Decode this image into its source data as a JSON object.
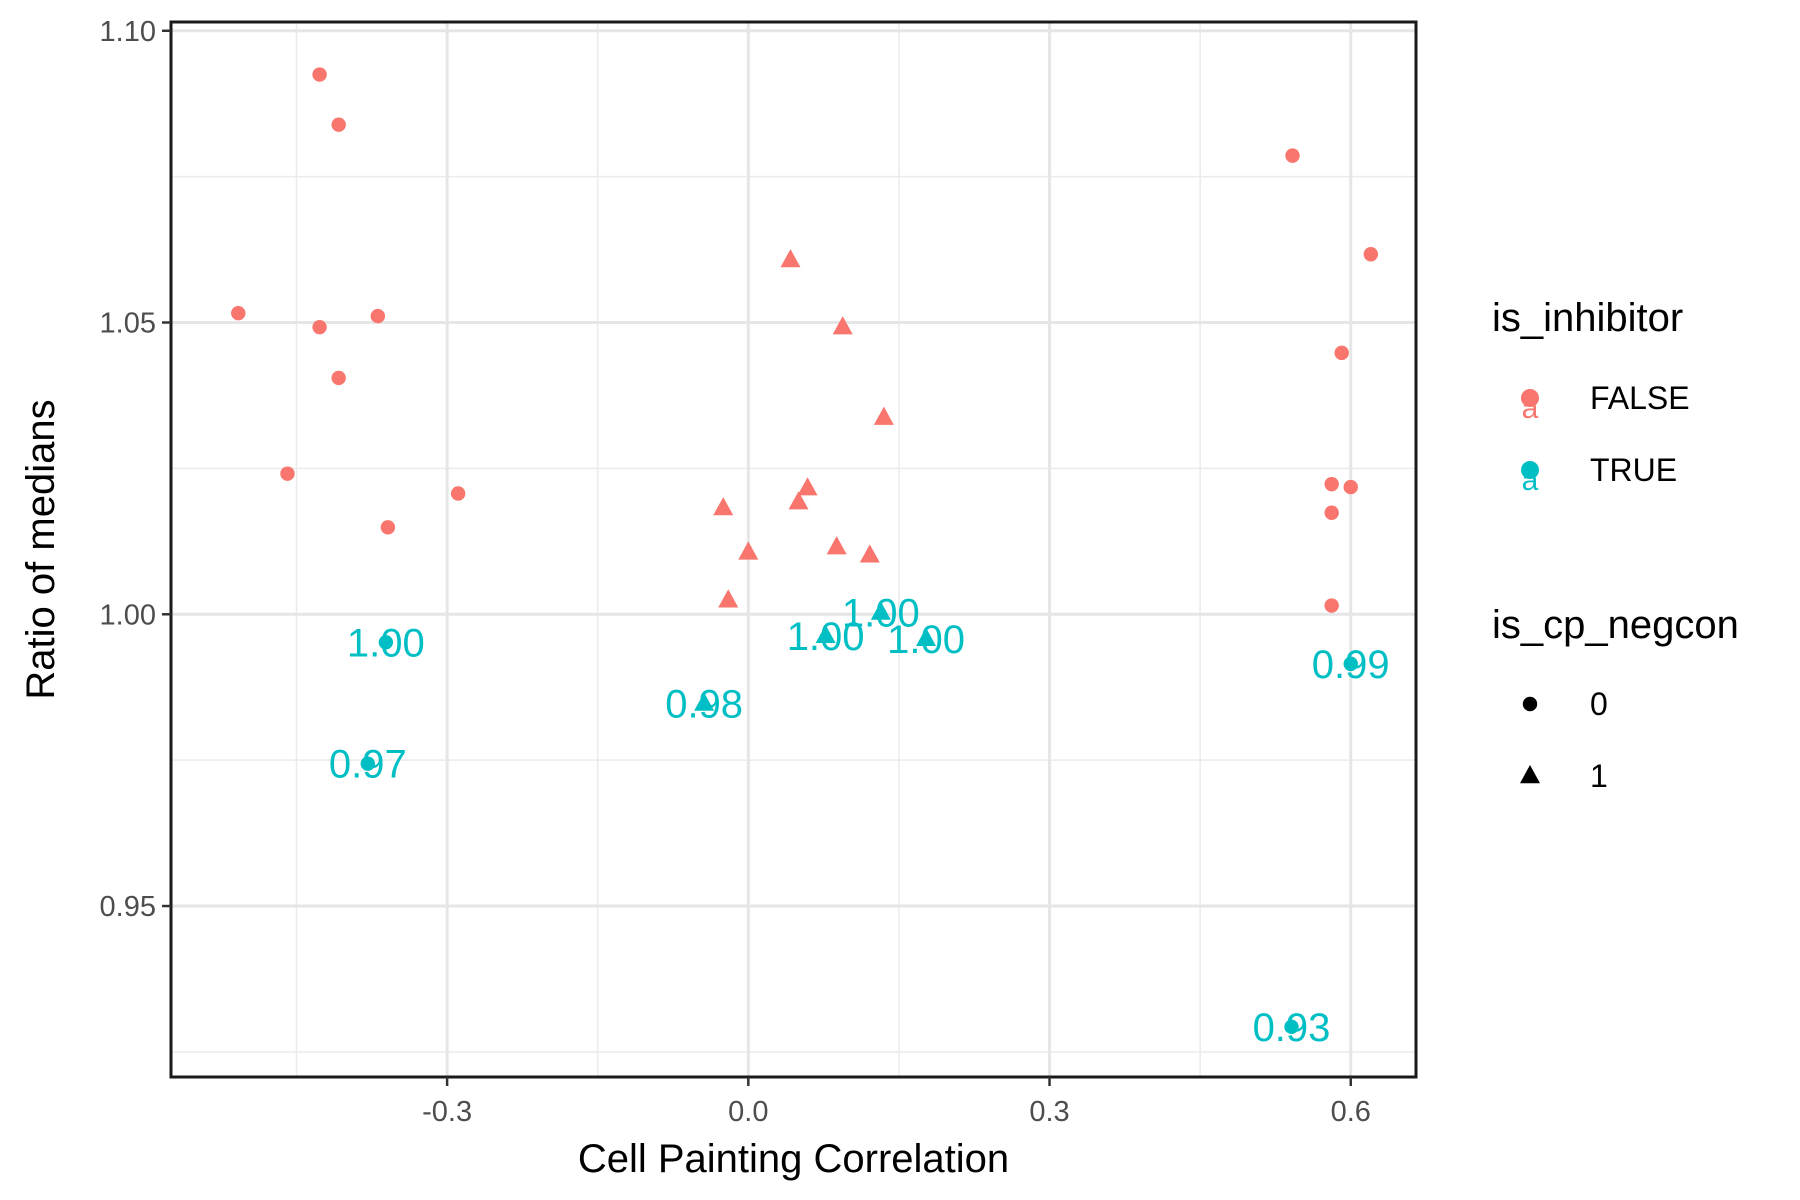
{
  "chart_data": {
    "type": "scatter",
    "xlabel": "Cell Painting Correlation",
    "ylabel": "Ratio of medians",
    "xlim": [
      -0.575,
      0.665
    ],
    "ylim": [
      0.9207,
      1.1015
    ],
    "x_ticks": [
      {
        "value": -0.3,
        "label": "-0.3"
      },
      {
        "value": 0.0,
        "label": "0.0"
      },
      {
        "value": 0.3,
        "label": "0.3"
      },
      {
        "value": 0.6,
        "label": "0.6"
      }
    ],
    "y_ticks": [
      {
        "value": 0.95,
        "label": "0.95"
      },
      {
        "value": 1.0,
        "label": "1.00"
      },
      {
        "value": 1.05,
        "label": "1.05"
      },
      {
        "value": 1.1,
        "label": "1.10"
      }
    ],
    "x_minor": [
      -0.45,
      -0.15,
      0.15,
      0.45
    ],
    "y_minor": [
      0.925,
      0.975,
      1.025,
      1.075
    ],
    "grid": true,
    "colors": {
      "FALSE": "#F8766D",
      "TRUE": "#00BFC4"
    },
    "legends": [
      {
        "title": "is_inhibitor",
        "kind": "color",
        "items": [
          {
            "label": "FALSE",
            "color": "#F8766D"
          },
          {
            "label": "TRUE",
            "color": "#00BFC4"
          }
        ]
      },
      {
        "title": "is_cp_negcon",
        "kind": "shape",
        "items": [
          {
            "label": "0",
            "shape": "circle"
          },
          {
            "label": "1",
            "shape": "triangle"
          }
        ]
      }
    ],
    "legend_position": "right",
    "points": [
      {
        "x": -0.427,
        "y": 1.0925,
        "is_inhibitor": "FALSE",
        "is_cp_negcon": "0"
      },
      {
        "x": -0.408,
        "y": 1.0839,
        "is_inhibitor": "FALSE",
        "is_cp_negcon": "0"
      },
      {
        "x": -0.508,
        "y": 1.0516,
        "is_inhibitor": "FALSE",
        "is_cp_negcon": "0"
      },
      {
        "x": -0.427,
        "y": 1.0492,
        "is_inhibitor": "FALSE",
        "is_cp_negcon": "0"
      },
      {
        "x": -0.369,
        "y": 1.0511,
        "is_inhibitor": "FALSE",
        "is_cp_negcon": "0"
      },
      {
        "x": -0.408,
        "y": 1.0405,
        "is_inhibitor": "FALSE",
        "is_cp_negcon": "0"
      },
      {
        "x": -0.459,
        "y": 1.0241,
        "is_inhibitor": "FALSE",
        "is_cp_negcon": "0"
      },
      {
        "x": -0.289,
        "y": 1.0207,
        "is_inhibitor": "FALSE",
        "is_cp_negcon": "0"
      },
      {
        "x": -0.359,
        "y": 1.0149,
        "is_inhibitor": "FALSE",
        "is_cp_negcon": "0"
      },
      {
        "x": 0.542,
        "y": 1.0786,
        "is_inhibitor": "FALSE",
        "is_cp_negcon": "0"
      },
      {
        "x": 0.62,
        "y": 1.0617,
        "is_inhibitor": "FALSE",
        "is_cp_negcon": "0"
      },
      {
        "x": 0.591,
        "y": 1.0448,
        "is_inhibitor": "FALSE",
        "is_cp_negcon": "0"
      },
      {
        "x": 0.581,
        "y": 1.0223,
        "is_inhibitor": "FALSE",
        "is_cp_negcon": "0"
      },
      {
        "x": 0.6,
        "y": 1.0218,
        "is_inhibitor": "FALSE",
        "is_cp_negcon": "0"
      },
      {
        "x": 0.581,
        "y": 1.0174,
        "is_inhibitor": "FALSE",
        "is_cp_negcon": "0"
      },
      {
        "x": 0.581,
        "y": 1.0015,
        "is_inhibitor": "FALSE",
        "is_cp_negcon": "0"
      },
      {
        "x": 0.042,
        "y": 1.0607,
        "is_inhibitor": "FALSE",
        "is_cp_negcon": "1"
      },
      {
        "x": 0.094,
        "y": 1.0492,
        "is_inhibitor": "FALSE",
        "is_cp_negcon": "1"
      },
      {
        "x": 0.135,
        "y": 1.0337,
        "is_inhibitor": "FALSE",
        "is_cp_negcon": "1"
      },
      {
        "x": 0.059,
        "y": 1.0216,
        "is_inhibitor": "FALSE",
        "is_cp_negcon": "1"
      },
      {
        "x": 0.05,
        "y": 1.0192,
        "is_inhibitor": "FALSE",
        "is_cp_negcon": "1"
      },
      {
        "x": -0.025,
        "y": 1.0182,
        "is_inhibitor": "FALSE",
        "is_cp_negcon": "1"
      },
      {
        "x": 0.088,
        "y": 1.0115,
        "is_inhibitor": "FALSE",
        "is_cp_negcon": "1"
      },
      {
        "x": 0.121,
        "y": 1.0101,
        "is_inhibitor": "FALSE",
        "is_cp_negcon": "1"
      },
      {
        "x": 0.0,
        "y": 1.0106,
        "is_inhibitor": "FALSE",
        "is_cp_negcon": "1"
      },
      {
        "x": -0.02,
        "y": 1.0024,
        "is_inhibitor": "FALSE",
        "is_cp_negcon": "1"
      },
      {
        "x": -0.361,
        "y": 0.9952,
        "is_inhibitor": "TRUE",
        "is_cp_negcon": "0",
        "label": "1.00"
      },
      {
        "x": -0.379,
        "y": 0.9744,
        "is_inhibitor": "TRUE",
        "is_cp_negcon": "0",
        "label": "0.97"
      },
      {
        "x": -0.044,
        "y": 0.9847,
        "is_inhibitor": "TRUE",
        "is_cp_negcon": "1",
        "label": "0.98"
      },
      {
        "x": 0.077,
        "y": 0.9963,
        "is_inhibitor": "TRUE",
        "is_cp_negcon": "1",
        "label": "1.00"
      },
      {
        "x": 0.132,
        "y": 1.0003,
        "is_inhibitor": "TRUE",
        "is_cp_negcon": "1",
        "label": "1.00"
      },
      {
        "x": 0.177,
        "y": 0.9958,
        "is_inhibitor": "TRUE",
        "is_cp_negcon": "1",
        "label": "1.00"
      },
      {
        "x": 0.6,
        "y": 0.9915,
        "is_inhibitor": "TRUE",
        "is_cp_negcon": "0",
        "label": "0.99"
      },
      {
        "x": 0.541,
        "y": 0.9293,
        "is_inhibitor": "TRUE",
        "is_cp_negcon": "0",
        "label": "0.93"
      }
    ]
  }
}
